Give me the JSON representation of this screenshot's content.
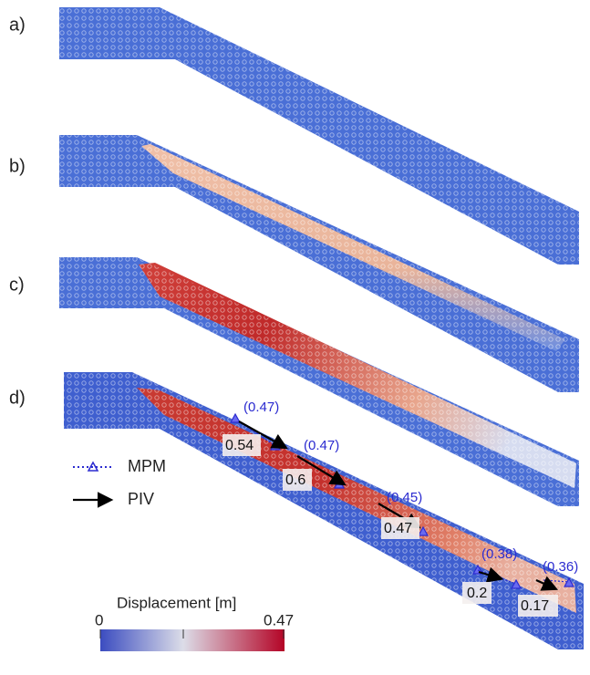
{
  "panels": [
    {
      "label": "a)"
    },
    {
      "label": "b)"
    },
    {
      "label": "c)"
    },
    {
      "label": "d)"
    }
  ],
  "legend": {
    "entries": [
      {
        "label": "MPM"
      },
      {
        "label": "PIV"
      }
    ]
  },
  "colorbar": {
    "title": "Displacement [m]",
    "min_label": "0",
    "max_label": "0.47"
  },
  "annotations": {
    "mpm": [
      "(0.47)",
      "(0.47)",
      "(0.45)",
      "(0.38)",
      "(0.36)"
    ],
    "piv": [
      "0.54",
      "0.6",
      "0.47",
      "0.2",
      "0.17"
    ]
  }
}
